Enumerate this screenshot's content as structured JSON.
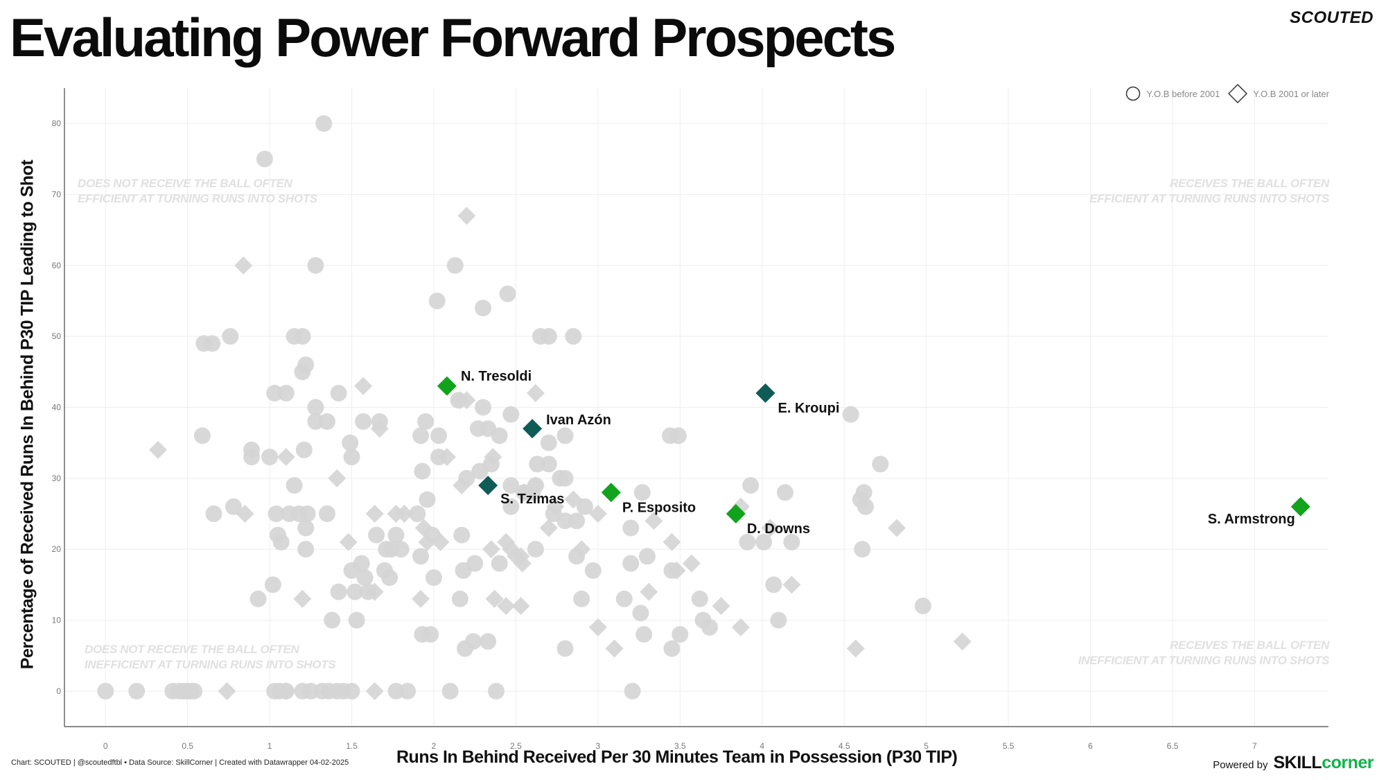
{
  "header": {
    "title": "Evaluating Power Forward Prospects",
    "brand": "SCOUTED"
  },
  "legend": {
    "circle_label": "Y.O.B before 2001",
    "diamond_label": "Y.O.B 2001 or later"
  },
  "quadrants": {
    "top_left": [
      "DOES NOT RECEIVE THE BALL OFTEN",
      "EFFICIENT AT TURNING RUNS INTO SHOTS"
    ],
    "top_right": [
      "RECEIVES THE BALL OFTEN",
      "EFFICIENT AT TURNING RUNS INTO SHOTS"
    ],
    "bottom_left": [
      "DOES NOT RECEIVE THE BALL OFTEN",
      "INEFFICIENT AT TURNING RUNS INTO SHOTS"
    ],
    "bottom_right": [
      "RECEIVES THE BALL OFTEN",
      "INEFFICIENT AT TURNING RUNS INTO SHOTS"
    ]
  },
  "footer": {
    "source_text": "Chart: SCOUTED | @scoutedftbl • Data Source: SkillCorner | Created with Datawrapper 04-02-2025",
    "powered_by": "Powered by",
    "logo_part1": "SKILL",
    "logo_part2": "corner"
  },
  "colors": {
    "background": "#ffffff",
    "grey_point": "#d5d5d5",
    "highlight_green": "#12a31c",
    "highlight_teal": "#0f5c57",
    "gridline": "#eeeeee",
    "axis_line": "#444444"
  },
  "chart_data": {
    "type": "scatter",
    "title": "Evaluating Power Forward Prospects",
    "xlabel": "Runs In Behind Received Per 30 Minutes Team in Possession (P30 TIP)",
    "ylabel": "Percentage of Received Runs In Behind P30 TIP Leading to Shot",
    "xlim": [
      -0.25,
      7.45
    ],
    "ylim": [
      -5,
      85
    ],
    "x_ticks": [
      0,
      0.5,
      1,
      1.5,
      2,
      2.5,
      3,
      3.5,
      4,
      4.5,
      5,
      5.5,
      6,
      6.5,
      7
    ],
    "x_tick_labels": [
      "0",
      "0.5",
      "1",
      "1.5",
      "2",
      "2.5",
      "3",
      "3.5",
      "4",
      "4.5",
      "5",
      "5.5",
      "6",
      "6.5",
      "7"
    ],
    "y_ticks": [
      0,
      10,
      20,
      30,
      40,
      50,
      60,
      70,
      80
    ],
    "y_tick_labels": [
      "0",
      "10",
      "20",
      "30",
      "40",
      "50",
      "60",
      "70",
      "80"
    ],
    "grid": true,
    "legend_position": "top-right",
    "series": [
      {
        "name": "Y.O.B before 2001",
        "marker": "circle",
        "points": [
          [
            1.33,
            80
          ],
          [
            0.97,
            75
          ],
          [
            1.28,
            60
          ],
          [
            2.13,
            60
          ],
          [
            2.45,
            56
          ],
          [
            2.02,
            55
          ],
          [
            2.3,
            54
          ],
          [
            0.6,
            49
          ],
          [
            0.65,
            49
          ],
          [
            0.76,
            50
          ],
          [
            1.15,
            50
          ],
          [
            1.2,
            50
          ],
          [
            2.65,
            50
          ],
          [
            2.7,
            50
          ],
          [
            2.85,
            50
          ],
          [
            1.22,
            46
          ],
          [
            1.2,
            45
          ],
          [
            1.03,
            42
          ],
          [
            1.1,
            42
          ],
          [
            1.42,
            42
          ],
          [
            2.15,
            41
          ],
          [
            2.3,
            40
          ],
          [
            2.47,
            39
          ],
          [
            1.28,
            40
          ],
          [
            1.28,
            38
          ],
          [
            1.35,
            38
          ],
          [
            1.57,
            38
          ],
          [
            1.67,
            38
          ],
          [
            1.95,
            38
          ],
          [
            4.54,
            39
          ],
          [
            0.59,
            36
          ],
          [
            1.92,
            36
          ],
          [
            2.03,
            36
          ],
          [
            2.27,
            37
          ],
          [
            2.33,
            37
          ],
          [
            2.4,
            36
          ],
          [
            2.8,
            36
          ],
          [
            3.44,
            36
          ],
          [
            3.49,
            36
          ],
          [
            0.89,
            34
          ],
          [
            1.21,
            34
          ],
          [
            1.49,
            35
          ],
          [
            2.7,
            35
          ],
          [
            0.89,
            33
          ],
          [
            1.0,
            33
          ],
          [
            1.5,
            33
          ],
          [
            2.03,
            33
          ],
          [
            1.93,
            31
          ],
          [
            2.2,
            30
          ],
          [
            2.28,
            31
          ],
          [
            2.35,
            32
          ],
          [
            2.63,
            32
          ],
          [
            2.7,
            32
          ],
          [
            2.77,
            30
          ],
          [
            2.8,
            30
          ],
          [
            4.72,
            32
          ],
          [
            1.15,
            29
          ],
          [
            2.47,
            29
          ],
          [
            2.62,
            29
          ],
          [
            3.93,
            29
          ],
          [
            4.14,
            28
          ],
          [
            4.6,
            27
          ],
          [
            4.62,
            28
          ],
          [
            3.27,
            28
          ],
          [
            2.55,
            28
          ],
          [
            2.6,
            28
          ],
          [
            1.96,
            27
          ],
          [
            2.47,
            26
          ],
          [
            2.92,
            26
          ],
          [
            4.63,
            26
          ],
          [
            0.66,
            25
          ],
          [
            0.78,
            26
          ],
          [
            1.04,
            25
          ],
          [
            1.12,
            25
          ],
          [
            1.18,
            25
          ],
          [
            1.23,
            25
          ],
          [
            1.35,
            25
          ],
          [
            1.9,
            25
          ],
          [
            2.73,
            25
          ],
          [
            2.8,
            24
          ],
          [
            2.87,
            24
          ],
          [
            3.2,
            23
          ],
          [
            1.22,
            23
          ],
          [
            1.05,
            22
          ],
          [
            1.07,
            21
          ],
          [
            1.65,
            22
          ],
          [
            1.77,
            22
          ],
          [
            1.99,
            22
          ],
          [
            2.17,
            22
          ],
          [
            1.74,
            20
          ],
          [
            1.71,
            20
          ],
          [
            1.8,
            20
          ],
          [
            1.22,
            20
          ],
          [
            1.92,
            19
          ],
          [
            2.25,
            18
          ],
          [
            2.4,
            18
          ],
          [
            2.62,
            20
          ],
          [
            2.87,
            19
          ],
          [
            3.3,
            19
          ],
          [
            3.2,
            18
          ],
          [
            3.45,
            17
          ],
          [
            2.97,
            17
          ],
          [
            3.91,
            21
          ],
          [
            4.01,
            21
          ],
          [
            4.18,
            21
          ],
          [
            4.61,
            20
          ],
          [
            1.5,
            17
          ],
          [
            1.56,
            18
          ],
          [
            1.7,
            17
          ],
          [
            2.18,
            17
          ],
          [
            1.58,
            16
          ],
          [
            1.73,
            16
          ],
          [
            2.0,
            16
          ],
          [
            1.52,
            14
          ],
          [
            1.6,
            14
          ],
          [
            1.42,
            14
          ],
          [
            1.02,
            15
          ],
          [
            4.07,
            15
          ],
          [
            0.93,
            13
          ],
          [
            2.16,
            13
          ],
          [
            2.9,
            13
          ],
          [
            3.16,
            13
          ],
          [
            3.62,
            13
          ],
          [
            4.98,
            12
          ],
          [
            3.26,
            11
          ],
          [
            1.38,
            10
          ],
          [
            1.53,
            10
          ],
          [
            3.64,
            10
          ],
          [
            3.68,
            9
          ],
          [
            4.1,
            10
          ],
          [
            1.93,
            8
          ],
          [
            1.98,
            8
          ],
          [
            3.28,
            8
          ],
          [
            3.5,
            8
          ],
          [
            2.24,
            7
          ],
          [
            2.33,
            7
          ],
          [
            2.19,
            6
          ],
          [
            2.8,
            6
          ],
          [
            3.45,
            6
          ],
          [
            0.0,
            0
          ],
          [
            0.19,
            0
          ],
          [
            0.41,
            0
          ],
          [
            0.45,
            0
          ],
          [
            0.48,
            0
          ],
          [
            0.5,
            0
          ],
          [
            0.52,
            0
          ],
          [
            0.54,
            0
          ],
          [
            1.03,
            0
          ],
          [
            1.06,
            0
          ],
          [
            1.1,
            0
          ],
          [
            1.2,
            0
          ],
          [
            1.25,
            0
          ],
          [
            1.32,
            0
          ],
          [
            1.36,
            0
          ],
          [
            1.41,
            0
          ],
          [
            1.45,
            0
          ],
          [
            1.5,
            0
          ],
          [
            1.77,
            0
          ],
          [
            1.84,
            0
          ],
          [
            2.1,
            0
          ],
          [
            2.38,
            0
          ],
          [
            3.21,
            0
          ]
        ]
      },
      {
        "name": "Y.O.B 2001 or later",
        "marker": "diamond",
        "points": [
          [
            2.2,
            67
          ],
          [
            0.84,
            60
          ],
          [
            2.62,
            42
          ],
          [
            2.16,
            41
          ],
          [
            2.2,
            41
          ],
          [
            1.57,
            43
          ],
          [
            1.67,
            37
          ],
          [
            0.32,
            34
          ],
          [
            1.1,
            33
          ],
          [
            2.08,
            33
          ],
          [
            2.36,
            33
          ],
          [
            2.17,
            29
          ],
          [
            1.41,
            30
          ],
          [
            2.33,
            29
          ],
          [
            2.55,
            28
          ],
          [
            2.62,
            29
          ],
          [
            0.85,
            25
          ],
          [
            1.64,
            25
          ],
          [
            1.77,
            25
          ],
          [
            1.82,
            25
          ],
          [
            3.0,
            25
          ],
          [
            3.87,
            26
          ],
          [
            2.74,
            26
          ],
          [
            2.85,
            27
          ],
          [
            4.05,
            23
          ],
          [
            3.34,
            24
          ],
          [
            1.94,
            23
          ],
          [
            2.7,
            23
          ],
          [
            1.48,
            21
          ],
          [
            1.96,
            21
          ],
          [
            2.04,
            21
          ],
          [
            3.45,
            21
          ],
          [
            2.44,
            21
          ],
          [
            2.53,
            19
          ],
          [
            2.35,
            20
          ],
          [
            2.47,
            20
          ],
          [
            2.9,
            20
          ],
          [
            2.5,
            19
          ],
          [
            2.54,
            18
          ],
          [
            3.57,
            18
          ],
          [
            3.48,
            17
          ],
          [
            4.82,
            23
          ],
          [
            1.2,
            13
          ],
          [
            1.92,
            13
          ],
          [
            2.37,
            13
          ],
          [
            2.44,
            12
          ],
          [
            2.53,
            12
          ],
          [
            3.31,
            14
          ],
          [
            3.75,
            12
          ],
          [
            4.18,
            15
          ],
          [
            1.64,
            14
          ],
          [
            3.0,
            9
          ],
          [
            3.1,
            6
          ],
          [
            3.87,
            9
          ],
          [
            4.57,
            6
          ],
          [
            5.22,
            7
          ],
          [
            0.74,
            0
          ],
          [
            1.1,
            0
          ],
          [
            1.64,
            0
          ]
        ]
      }
    ],
    "highlighted": [
      {
        "name": "N. Tresoldi",
        "x": 2.08,
        "y": 43,
        "color": "green"
      },
      {
        "name": "Ivan Azón",
        "x": 2.6,
        "y": 37,
        "color": "teal"
      },
      {
        "name": "E. Kroupi",
        "x": 4.02,
        "y": 42,
        "color": "teal"
      },
      {
        "name": "S. Tzimas",
        "x": 2.33,
        "y": 29,
        "color": "teal"
      },
      {
        "name": "P. Esposito",
        "x": 3.08,
        "y": 28,
        "color": "green"
      },
      {
        "name": "D. Downs",
        "x": 3.84,
        "y": 25,
        "color": "green"
      },
      {
        "name": "S. Armstrong",
        "x": 7.28,
        "y": 26,
        "color": "green"
      }
    ]
  }
}
